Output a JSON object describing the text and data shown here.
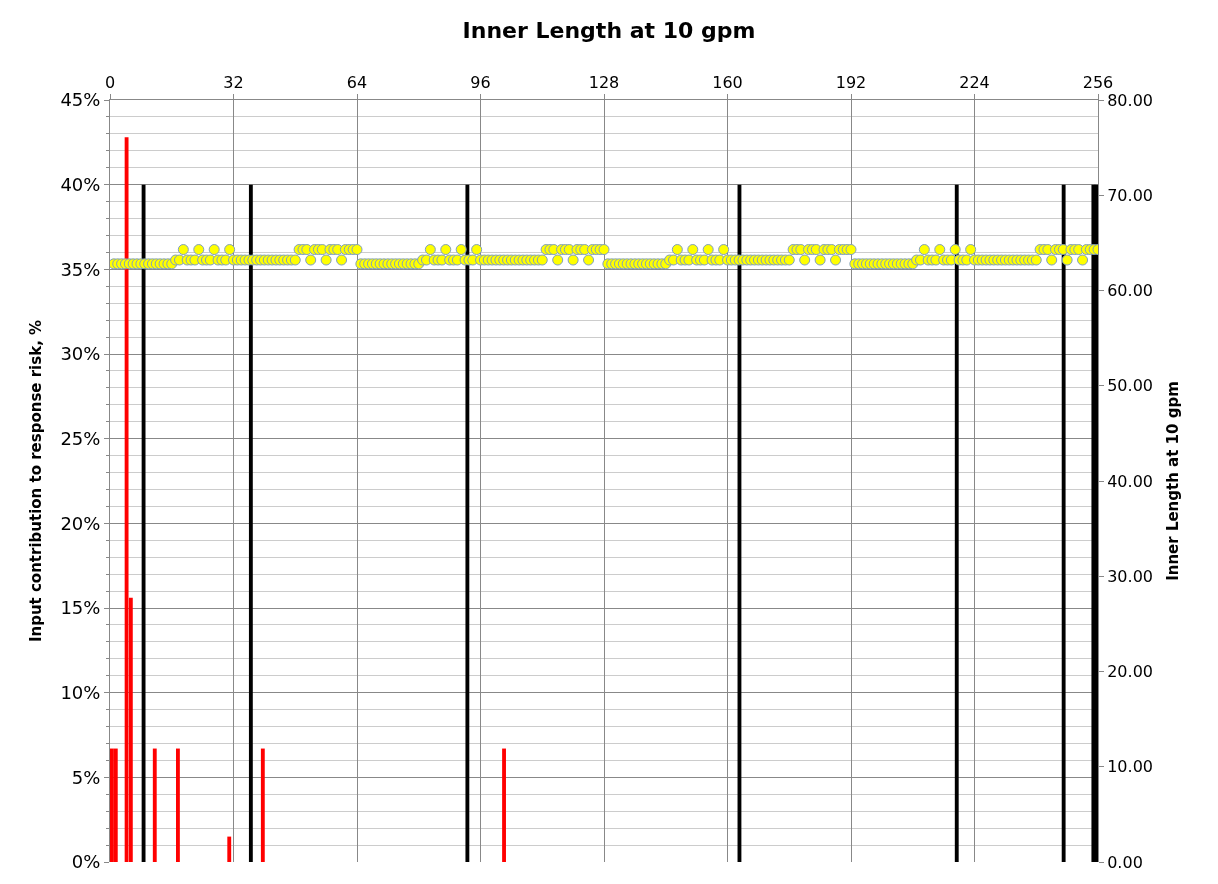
{
  "chart_data": {
    "type": "bar",
    "title": "Inner Length at 10 gpm",
    "ylabel": "Input contribution to response risk, %",
    "y2label": "Inner Length at 10 gpm",
    "xlim": [
      0,
      256
    ],
    "xticks": [
      0,
      32,
      64,
      96,
      128,
      160,
      192,
      224,
      256
    ],
    "ylim": [
      0,
      45
    ],
    "yticks": [
      {
        "value": 0,
        "label": "0%"
      },
      {
        "value": 5,
        "label": "5%"
      },
      {
        "value": 10,
        "label": "10%"
      },
      {
        "value": 15,
        "label": "15%"
      },
      {
        "value": 20,
        "label": "20%"
      },
      {
        "value": 25,
        "label": "25%"
      },
      {
        "value": 30,
        "label": "30%"
      },
      {
        "value": 35,
        "label": "35%"
      },
      {
        "value": 40,
        "label": "40%"
      },
      {
        "value": 45,
        "label": "45%"
      }
    ],
    "y2lim": [
      0,
      80
    ],
    "y2ticks": [
      {
        "value": 0,
        "label": "0.00"
      },
      {
        "value": 10,
        "label": "10.00"
      },
      {
        "value": 20,
        "label": "20.00"
      },
      {
        "value": 30,
        "label": "30.00"
      },
      {
        "value": 40,
        "label": "40.00"
      },
      {
        "value": 50,
        "label": "50.00"
      },
      {
        "value": 60,
        "label": "60.00"
      },
      {
        "value": 70,
        "label": "70.00"
      },
      {
        "value": 80,
        "label": "80.00"
      }
    ],
    "grid": true,
    "series": [
      {
        "type": "scatter",
        "axis": "y2",
        "marker": "circle",
        "color": "#ffff00",
        "x": [
          1,
          2,
          3,
          4,
          5,
          6,
          7,
          8,
          9,
          10,
          11,
          12,
          13,
          14,
          15,
          16,
          17,
          18,
          19,
          20,
          21,
          22,
          23,
          24,
          25,
          26,
          27,
          28,
          29,
          30,
          31,
          32,
          33,
          34,
          35,
          36,
          37,
          38,
          39,
          40,
          41,
          42,
          43,
          44,
          45,
          46,
          47,
          48,
          49,
          50,
          51,
          52,
          53,
          54,
          55,
          56,
          57,
          58,
          59,
          60,
          61,
          62,
          63,
          64,
          65,
          66,
          67,
          68,
          69,
          70,
          71,
          72,
          73,
          74,
          75,
          76,
          77,
          78,
          79,
          80,
          81,
          82,
          83,
          84,
          85,
          86,
          87,
          88,
          89,
          90,
          91,
          92,
          93,
          94,
          95,
          96,
          97,
          98,
          99,
          100,
          101,
          102,
          103,
          104,
          105,
          106,
          107,
          108,
          109,
          110,
          111,
          112,
          113,
          114,
          115,
          116,
          117,
          118,
          119,
          120,
          121,
          122,
          123,
          124,
          125,
          126,
          127,
          128,
          129,
          130,
          131,
          132,
          133,
          134,
          135,
          136,
          137,
          138,
          139,
          140,
          141,
          142,
          143,
          144,
          145,
          146,
          147,
          148,
          149,
          150,
          151,
          152,
          153,
          154,
          155,
          156,
          157,
          158,
          159,
          160,
          161,
          162,
          163,
          164,
          165,
          166,
          167,
          168,
          169,
          170,
          171,
          172,
          173,
          174,
          175,
          176,
          177,
          178,
          179,
          180,
          181,
          182,
          183,
          184,
          185,
          186,
          187,
          188,
          189,
          190,
          191,
          192,
          193,
          194,
          195,
          196,
          197,
          198,
          199,
          200,
          201,
          202,
          203,
          204,
          205,
          206,
          207,
          208,
          209,
          210,
          211,
          212,
          213,
          214,
          215,
          216,
          217,
          218,
          219,
          220,
          221,
          222,
          223,
          224,
          225,
          226,
          227,
          228,
          229,
          230,
          231,
          232,
          233,
          234,
          235,
          236,
          237,
          238,
          239,
          240,
          241,
          242,
          243,
          244,
          245,
          246,
          247,
          248,
          249,
          250,
          251,
          252,
          253,
          254,
          255,
          256
        ],
        "values": [
          62.8,
          62.8,
          62.8,
          62.8,
          62.8,
          62.8,
          62.8,
          62.8,
          62.8,
          62.8,
          62.8,
          62.8,
          62.8,
          62.8,
          62.8,
          62.8,
          63.2,
          63.2,
          64.3,
          63.2,
          63.2,
          63.2,
          64.3,
          63.2,
          63.2,
          63.2,
          64.3,
          63.2,
          63.2,
          63.2,
          64.3,
          63.2,
          63.2,
          63.2,
          63.2,
          63.2,
          63.2,
          63.2,
          63.2,
          63.2,
          63.2,
          63.2,
          63.2,
          63.2,
          63.2,
          63.2,
          63.2,
          63.2,
          64.3,
          64.3,
          64.3,
          63.2,
          64.3,
          64.3,
          64.3,
          63.2,
          64.3,
          64.3,
          64.3,
          63.2,
          64.3,
          64.3,
          64.3,
          64.3,
          62.8,
          62.8,
          62.8,
          62.8,
          62.8,
          62.8,
          62.8,
          62.8,
          62.8,
          62.8,
          62.8,
          62.8,
          62.8,
          62.8,
          62.8,
          62.8,
          63.2,
          63.2,
          64.3,
          63.2,
          63.2,
          63.2,
          64.3,
          63.2,
          63.2,
          63.2,
          64.3,
          63.2,
          63.2,
          63.2,
          64.3,
          63.2,
          63.2,
          63.2,
          63.2,
          63.2,
          63.2,
          63.2,
          63.2,
          63.2,
          63.2,
          63.2,
          63.2,
          63.2,
          63.2,
          63.2,
          63.2,
          63.2,
          64.3,
          64.3,
          64.3,
          63.2,
          64.3,
          64.3,
          64.3,
          63.2,
          64.3,
          64.3,
          64.3,
          63.2,
          64.3,
          64.3,
          64.3,
          64.3,
          62.8,
          62.8,
          62.8,
          62.8,
          62.8,
          62.8,
          62.8,
          62.8,
          62.8,
          62.8,
          62.8,
          62.8,
          62.8,
          62.8,
          62.8,
          62.8,
          63.2,
          63.2,
          64.3,
          63.2,
          63.2,
          63.2,
          64.3,
          63.2,
          63.2,
          63.2,
          64.3,
          63.2,
          63.2,
          63.2,
          64.3,
          63.2,
          63.2,
          63.2,
          63.2,
          63.2,
          63.2,
          63.2,
          63.2,
          63.2,
          63.2,
          63.2,
          63.2,
          63.2,
          63.2,
          63.2,
          63.2,
          63.2,
          64.3,
          64.3,
          64.3,
          63.2,
          64.3,
          64.3,
          64.3,
          63.2,
          64.3,
          64.3,
          64.3,
          63.2,
          64.3,
          64.3,
          64.3,
          64.3,
          62.8,
          62.8,
          62.8,
          62.8,
          62.8,
          62.8,
          62.8,
          62.8,
          62.8,
          62.8,
          62.8,
          62.8,
          62.8,
          62.8,
          62.8,
          62.8,
          63.2,
          63.2,
          64.3,
          63.2,
          63.2,
          63.2,
          64.3,
          63.2,
          63.2,
          63.2,
          64.3,
          63.2,
          63.2,
          63.2,
          64.3,
          63.2,
          63.2,
          63.2,
          63.2,
          63.2,
          63.2,
          63.2,
          63.2,
          63.2,
          63.2,
          63.2,
          63.2,
          63.2,
          63.2,
          63.2,
          63.2,
          63.2,
          64.3,
          64.3,
          64.3,
          63.2,
          64.3,
          64.3,
          64.3,
          63.2,
          64.3,
          64.3,
          64.3,
          63.2,
          64.3,
          64.3,
          64.3,
          64.3
        ]
      },
      {
        "color": "#ff0000",
        "x": [
          0.5,
          1.5,
          4.3,
          5.4,
          11.6,
          17.6,
          30.9,
          39.6,
          102.1
        ],
        "values": [
          6.7,
          6.7,
          42.8,
          15.6,
          6.7,
          6.7,
          1.5,
          6.7,
          6.7
        ]
      },
      {
        "color": "#000000",
        "x": [
          8.7,
          36.5,
          92.6,
          163.1,
          219.4,
          247.1,
          254.8,
          255.6
        ],
        "values": [
          40,
          40,
          40,
          40,
          40,
          40,
          40,
          40
        ]
      }
    ]
  }
}
